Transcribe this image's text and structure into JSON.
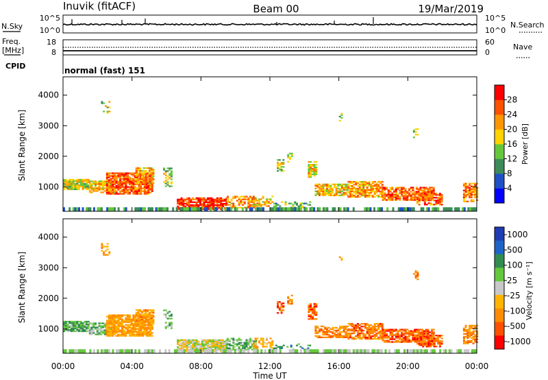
{
  "header": {
    "station": "Inuvik (fitACF)",
    "beam": "Beam 00",
    "date": "19/Mar/2019"
  },
  "panels": {
    "nsky_label": "N.Sky",
    "nsearch_label": "N.Search",
    "nsky_ticks": [
      "10^5",
      "10^0"
    ],
    "nsearch_ticks": [
      "10^5",
      "10^0"
    ],
    "freq_label_1": "Freq.",
    "freq_label_2": "[MHz]",
    "freq_ticks": [
      "18",
      "8"
    ],
    "nave_label": "Nave",
    "nave_ticks": [
      "60",
      "0"
    ],
    "cpid_label": "CPID",
    "cpid_value": "normal (fast) 151"
  },
  "chart_data": [
    {
      "type": "heatmap",
      "name": "power",
      "ylabel": "Slant Range [km]",
      "yticks": [
        "1000",
        "2000",
        "3000",
        "4000"
      ],
      "colorbar_label": "Power [dB]",
      "colorbar_ticks": [
        "4",
        "8",
        "12",
        "16",
        "20",
        "24",
        "28"
      ],
      "colors": [
        "#0000ff",
        "#1e50c8",
        "#3c8c5a",
        "#64c83c",
        "#ffd200",
        "#ff9600",
        "#ff5000",
        "#ff0000"
      ]
    },
    {
      "type": "heatmap",
      "name": "velocity",
      "ylabel": "Slant Range [km]",
      "yticks": [
        "1000",
        "2000",
        "3000",
        "4000"
      ],
      "colorbar_label": "Velocity [m s⁻¹]",
      "colorbar_ticks": [
        "1000",
        "500",
        "100",
        "25",
        "-25",
        "-100",
        "-500",
        "-1000"
      ],
      "colors": [
        "#1e3cb4",
        "#1e64c8",
        "#328c50",
        "#64c83c",
        "#c8c8c8",
        "#ffb400",
        "#ff8c00",
        "#ff5000",
        "#ff0000"
      ]
    }
  ],
  "xaxis": {
    "label": "Time UT",
    "ticks": [
      "00:00",
      "04:00",
      "08:00",
      "12:00",
      "16:00",
      "20:00",
      "00:00"
    ]
  }
}
